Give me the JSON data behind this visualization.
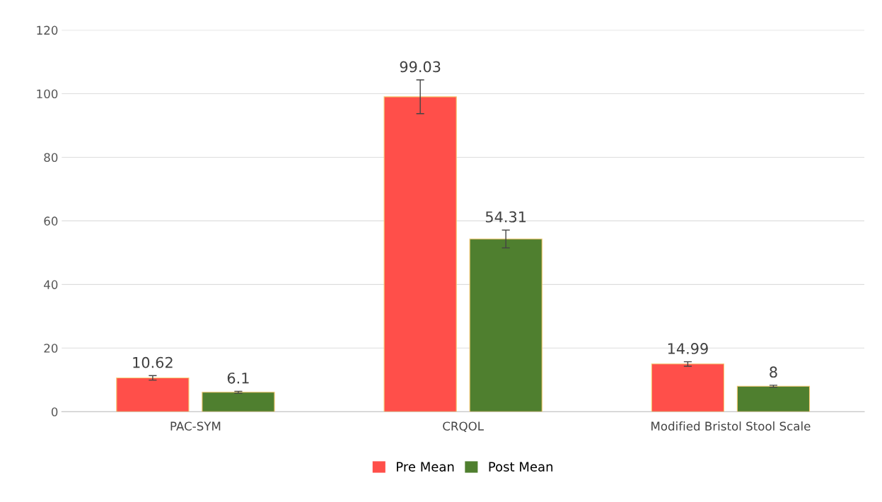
{
  "chart_data": {
    "type": "bar",
    "categories": [
      "PAC-SYM",
      "CRQOL",
      "Modified Bristol Stool Scale"
    ],
    "series": [
      {
        "name": "Pre Mean",
        "color": "#ff4f4a",
        "values": [
          10.62,
          99.03,
          14.99
        ],
        "errors": [
          0.7,
          5.3,
          0.7
        ]
      },
      {
        "name": "Post Mean",
        "color": "#4f7f2f",
        "values": [
          6.1,
          54.31,
          8
        ],
        "errors": [
          0.3,
          2.8,
          0.3
        ]
      }
    ],
    "ylim": [
      0,
      120
    ],
    "yticks": [
      0,
      20,
      40,
      60,
      80,
      100,
      120
    ],
    "grid": "y",
    "legend": "bottom",
    "data_labels": true
  }
}
